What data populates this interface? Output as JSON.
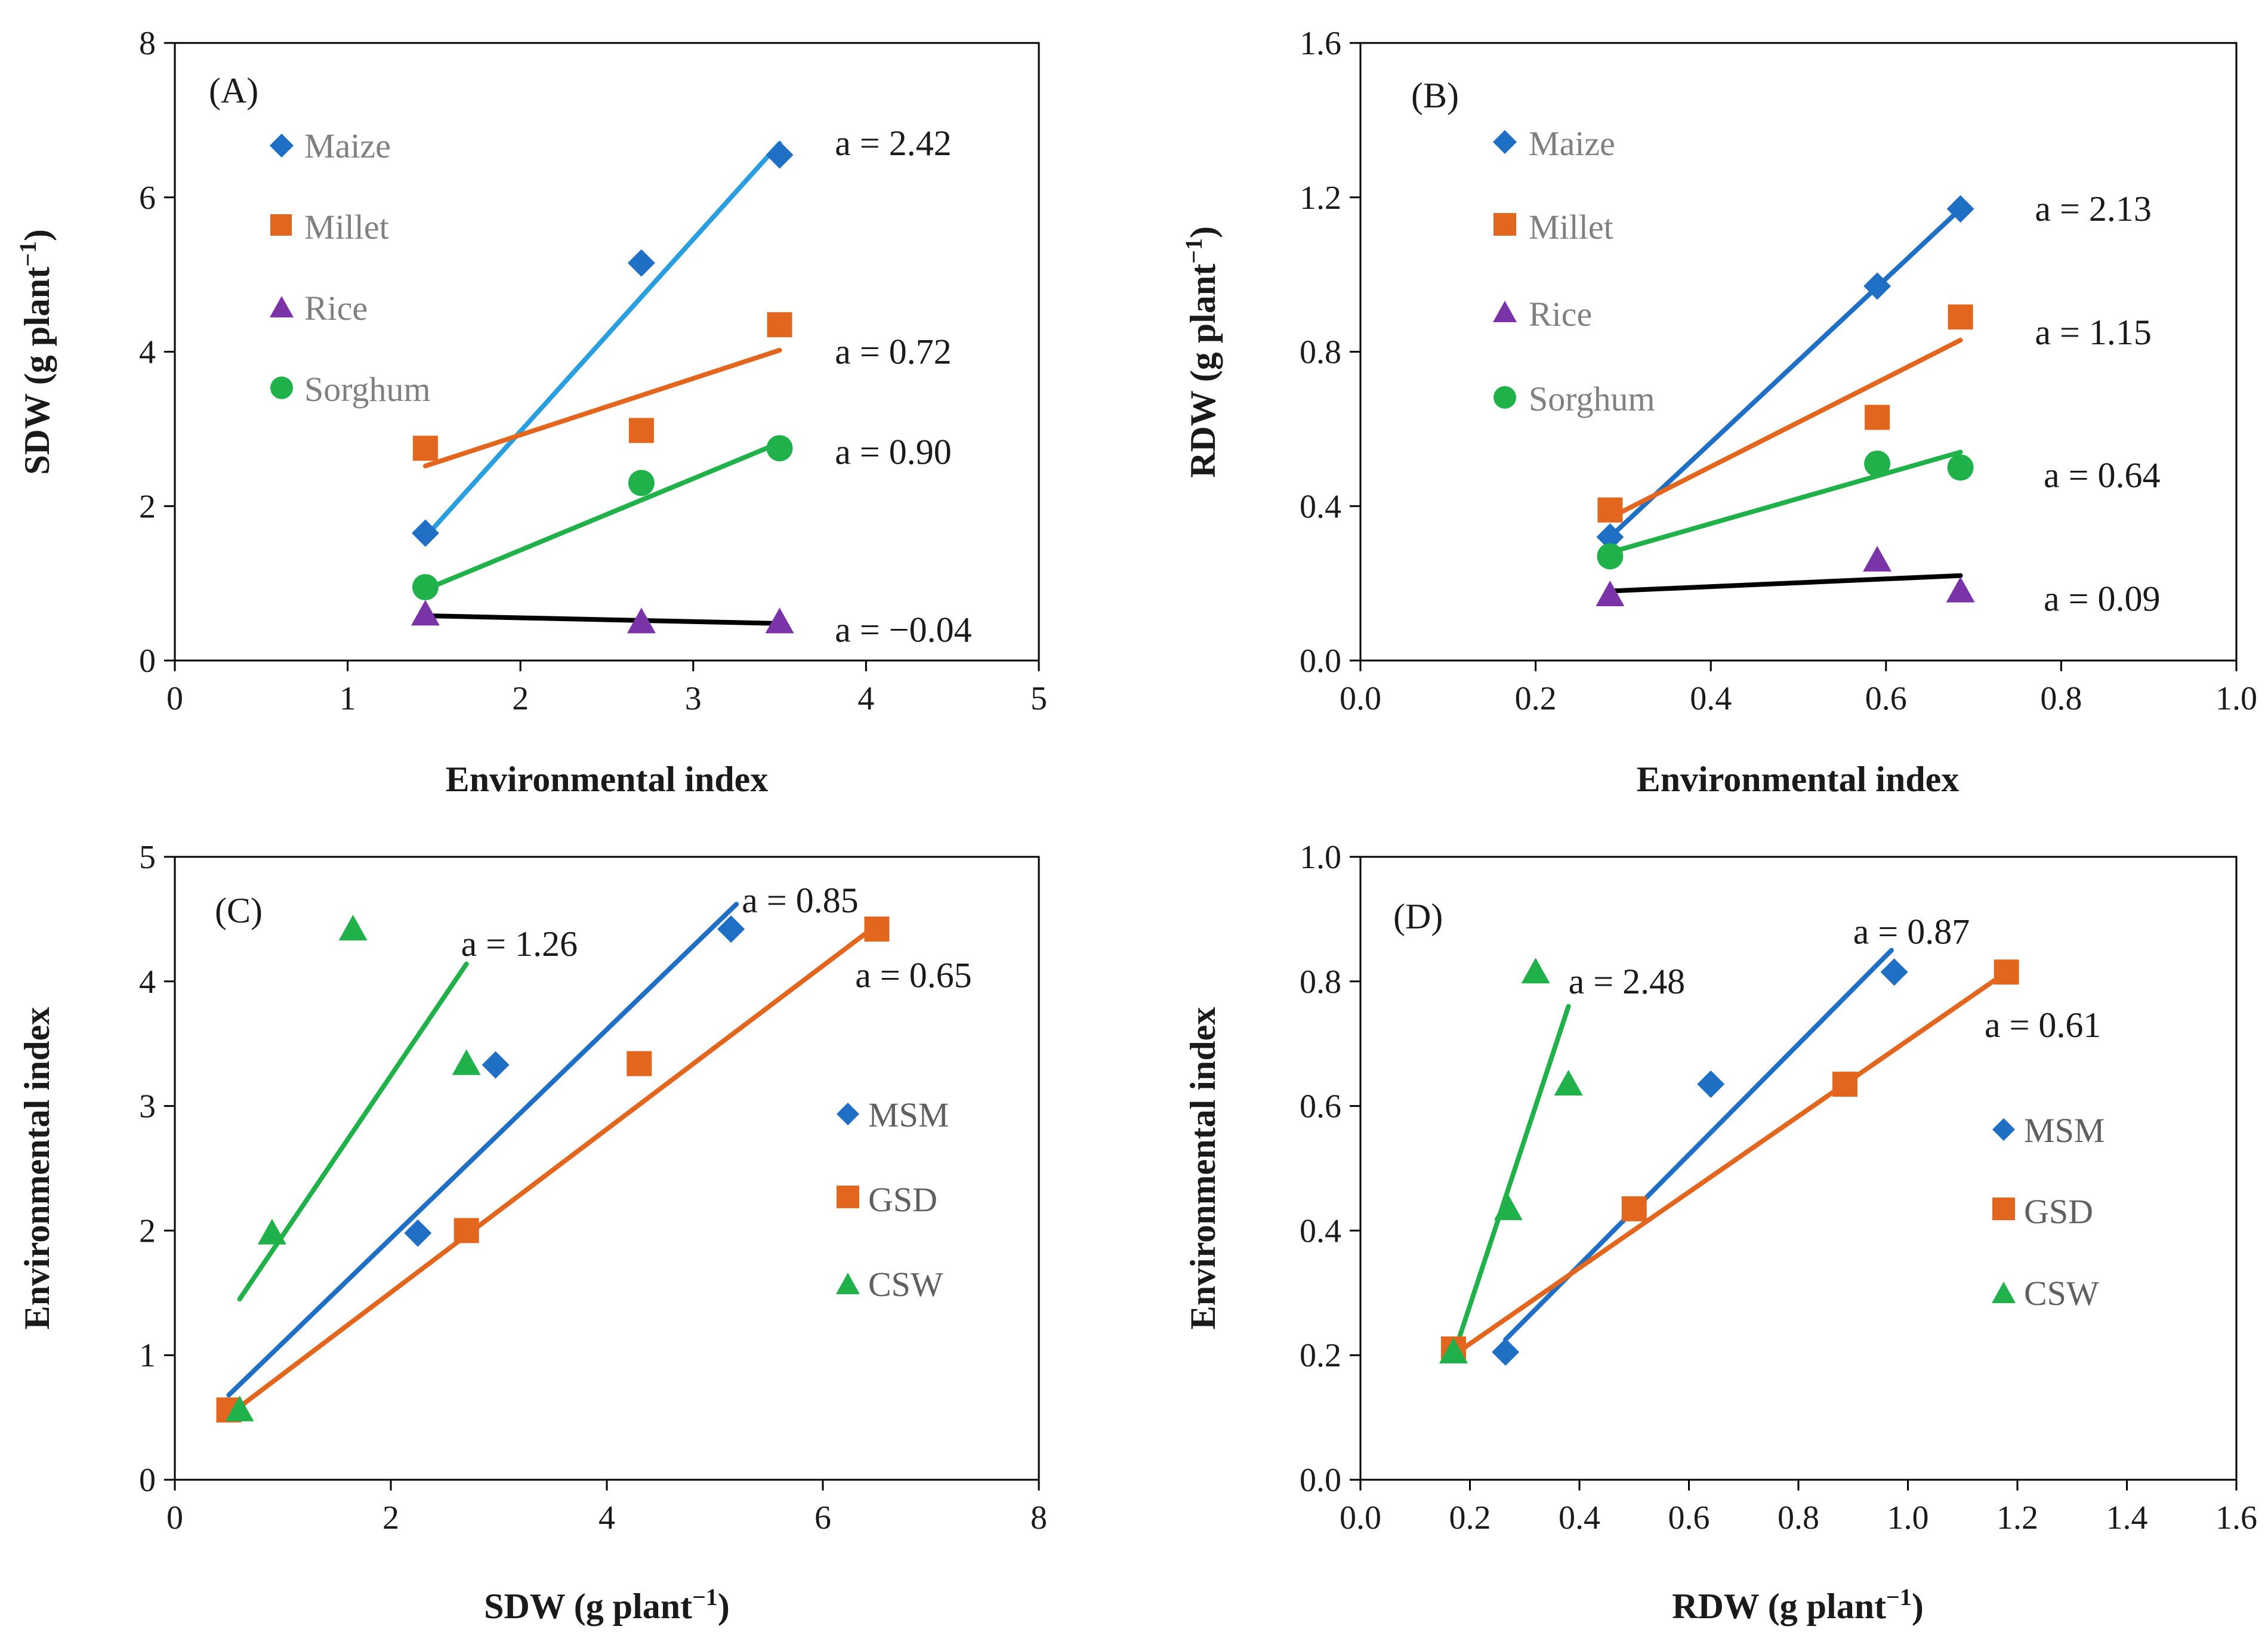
{
  "chart_data": [
    {
      "id": "A",
      "type": "scatter",
      "panel_label": "(A)",
      "xlabel": "Environmental index",
      "ylabel": "SDW (g plant⁻¹)",
      "xlim": [
        0,
        5
      ],
      "ylim": [
        0,
        8
      ],
      "xticks": [
        0,
        1,
        2,
        3,
        4,
        5
      ],
      "yticks": [
        0,
        2,
        4,
        6,
        8
      ],
      "tick_decimals": [
        0,
        0
      ],
      "legend_position": "top-left",
      "series": [
        {
          "name": "Maize",
          "marker": "diamond",
          "color": "#1f6fc5",
          "line_color": "#2a9fe0",
          "x": [
            1.45,
            2.7,
            3.5
          ],
          "y": [
            1.65,
            5.15,
            6.55
          ],
          "fit": [
            [
              1.45,
              1.6
            ],
            [
              3.5,
              6.7
            ]
          ],
          "annotation": "a = 2.42",
          "annot_at": [
            3.82,
            6.7
          ]
        },
        {
          "name": "Millet",
          "marker": "square",
          "color": "#e3661e",
          "line_color": "#e3661e",
          "x": [
            1.45,
            2.7,
            3.5
          ],
          "y": [
            2.75,
            2.98,
            4.35
          ],
          "fit": [
            [
              1.45,
              2.52
            ],
            [
              3.5,
              4.02
            ]
          ],
          "annotation": "a = 0.72",
          "annot_at": [
            3.82,
            4.0
          ]
        },
        {
          "name": "Rice",
          "marker": "triangle",
          "color": "#7a34a8",
          "line_color": "#000000",
          "x": [
            1.45,
            2.7,
            3.5
          ],
          "y": [
            0.6,
            0.5,
            0.5
          ],
          "fit": [
            [
              1.45,
              0.58
            ],
            [
              3.5,
              0.48
            ]
          ],
          "annotation": "a = −0.04",
          "annot_at": [
            3.82,
            0.4
          ]
        },
        {
          "name": "Sorghum",
          "marker": "circle",
          "color": "#21b14b",
          "line_color": "#21b14b",
          "x": [
            1.45,
            2.7,
            3.5
          ],
          "y": [
            0.95,
            2.3,
            2.75
          ],
          "fit": [
            [
              1.45,
              0.92
            ],
            [
              3.5,
              2.82
            ]
          ],
          "annotation": "a = 0.90",
          "annot_at": [
            3.82,
            2.7
          ]
        }
      ]
    },
    {
      "id": "B",
      "type": "scatter",
      "panel_label": "(B)",
      "xlabel": "Environmental index",
      "ylabel": "RDW (g plant⁻¹)",
      "xlim": [
        0,
        1.0
      ],
      "ylim": [
        0,
        1.6
      ],
      "xticks": [
        0,
        0.2,
        0.4,
        0.6,
        0.8,
        1.0
      ],
      "yticks": [
        0,
        0.4,
        0.8,
        1.2,
        1.6
      ],
      "tick_decimals": [
        1,
        1
      ],
      "legend_position": "top-left",
      "series": [
        {
          "name": "Maize",
          "marker": "diamond",
          "color": "#1f6fc5",
          "line_color": "#1f6fc5",
          "x": [
            0.285,
            0.59,
            0.685
          ],
          "y": [
            0.32,
            0.97,
            1.17
          ],
          "fit": [
            [
              0.285,
              0.32
            ],
            [
              0.685,
              1.17
            ]
          ],
          "annotation": "a = 2.13",
          "annot_at": [
            0.77,
            1.17
          ]
        },
        {
          "name": "Millet",
          "marker": "square",
          "color": "#e3661e",
          "line_color": "#e3661e",
          "x": [
            0.285,
            0.59,
            0.685
          ],
          "y": [
            0.39,
            0.63,
            0.89
          ],
          "fit": [
            [
              0.285,
              0.37
            ],
            [
              0.685,
              0.83
            ]
          ],
          "annotation": "a = 1.15",
          "annot_at": [
            0.77,
            0.85
          ]
        },
        {
          "name": "Rice",
          "marker": "triangle",
          "color": "#7a34a8",
          "line_color": "#000000",
          "x": [
            0.285,
            0.59,
            0.685
          ],
          "y": [
            0.17,
            0.26,
            0.18
          ],
          "fit": [
            [
              0.285,
              0.18
            ],
            [
              0.685,
              0.22
            ]
          ],
          "annotation": "a = 0.09",
          "annot_at": [
            0.78,
            0.16
          ]
        },
        {
          "name": "Sorghum",
          "marker": "circle",
          "color": "#21b14b",
          "line_color": "#21b14b",
          "x": [
            0.285,
            0.59,
            0.685
          ],
          "y": [
            0.27,
            0.51,
            0.5
          ],
          "fit": [
            [
              0.285,
              0.28
            ],
            [
              0.685,
              0.54
            ]
          ],
          "annotation": "a = 0.64",
          "annot_at": [
            0.78,
            0.48
          ]
        }
      ]
    },
    {
      "id": "C",
      "type": "scatter",
      "panel_label": "(C)",
      "xlabel": "SDW (g plant⁻¹)",
      "ylabel": "Environmental index",
      "xlim": [
        0,
        8
      ],
      "ylim": [
        0,
        5
      ],
      "xticks": [
        0,
        2,
        4,
        6,
        8
      ],
      "yticks": [
        0,
        1,
        2,
        3,
        4,
        5
      ],
      "tick_decimals": [
        0,
        0
      ],
      "legend_position": "center-right",
      "series": [
        {
          "name": "MSM",
          "marker": "diamond",
          "color": "#1f6fc5",
          "line_color": "#1f6fc5",
          "x": [
            2.25,
            2.97,
            5.15
          ],
          "y": [
            1.98,
            3.33,
            4.42
          ],
          "fit": [
            [
              0.5,
              0.68
            ],
            [
              5.2,
              4.62
            ]
          ],
          "annotation": "a = 0.85",
          "annot_at": [
            5.25,
            4.65
          ]
        },
        {
          "name": "GSD",
          "marker": "square",
          "color": "#e3661e",
          "line_color": "#e3661e",
          "x": [
            0.5,
            2.7,
            4.3,
            6.5
          ],
          "y": [
            0.56,
            2.0,
            3.34,
            4.42
          ],
          "fit": [
            [
              0.5,
              0.52
            ],
            [
              6.45,
              4.42
            ]
          ],
          "annotation": "a = 0.65",
          "annot_at": [
            6.3,
            4.05
          ]
        },
        {
          "name": "CSW",
          "marker": "triangle",
          "color": "#21b14b",
          "line_color": "#21b14b",
          "x": [
            0.6,
            0.9,
            1.65,
            2.7
          ],
          "y": [
            0.56,
            1.98,
            4.42,
            3.34
          ],
          "fit": [
            [
              0.6,
              1.45
            ],
            [
              2.7,
              4.14
            ]
          ],
          "annotation": "a = 1.26",
          "annot_at": [
            2.65,
            4.3
          ]
        }
      ]
    },
    {
      "id": "D",
      "type": "scatter",
      "panel_label": "(D)",
      "xlabel": "RDW (g plant⁻¹)",
      "ylabel": "Environmental index",
      "xlim": [
        0,
        1.6
      ],
      "ylim": [
        0,
        1.0
      ],
      "xticks": [
        0,
        0.2,
        0.4,
        0.6,
        0.8,
        1.0,
        1.2,
        1.4,
        1.6
      ],
      "yticks": [
        0,
        0.2,
        0.4,
        0.6,
        0.8,
        1.0
      ],
      "tick_decimals": [
        1,
        1
      ],
      "legend_position": "center-right",
      "series": [
        {
          "name": "MSM",
          "marker": "diamond",
          "color": "#1f6fc5",
          "line_color": "#1f6fc5",
          "x": [
            0.265,
            0.64,
            0.975
          ],
          "y": [
            0.205,
            0.635,
            0.815
          ],
          "fit": [
            [
              0.265,
              0.225
            ],
            [
              0.97,
              0.85
            ]
          ],
          "annotation": "a = 0.87",
          "annot_at": [
            0.9,
            0.88
          ]
        },
        {
          "name": "GSD",
          "marker": "square",
          "color": "#e3661e",
          "line_color": "#e3661e",
          "x": [
            0.17,
            0.5,
            0.885,
            1.18
          ],
          "y": [
            0.21,
            0.435,
            0.635,
            0.815
          ],
          "fit": [
            [
              0.17,
              0.2
            ],
            [
              1.18,
              0.815
            ]
          ],
          "annotation": "a = 0.61",
          "annot_at": [
            1.14,
            0.73
          ]
        },
        {
          "name": "CSW",
          "marker": "triangle",
          "color": "#21b14b",
          "line_color": "#21b14b",
          "x": [
            0.17,
            0.27,
            0.32,
            0.38
          ],
          "y": [
            0.205,
            0.435,
            0.815,
            0.635
          ],
          "fit": [
            [
              0.17,
              0.2
            ],
            [
              0.38,
              0.76
            ]
          ],
          "annotation": "a = 2.48",
          "annot_at": [
            0.38,
            0.8
          ]
        }
      ]
    }
  ]
}
